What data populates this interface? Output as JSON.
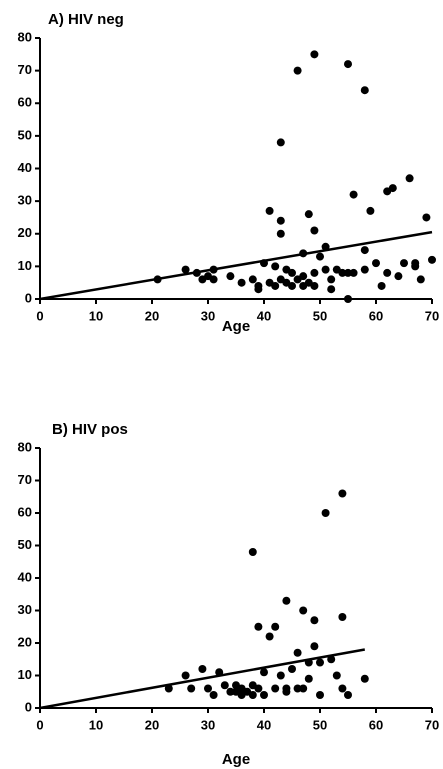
{
  "chart_data": [
    {
      "type": "scatter",
      "title": "A) HIV neg",
      "xlabel": "Age",
      "color": "#000000",
      "x": [
        21,
        26,
        28,
        29,
        30,
        31,
        31,
        34,
        36,
        38,
        39,
        39,
        40,
        41,
        41,
        42,
        42,
        43,
        43,
        43,
        43,
        44,
        44,
        45,
        45,
        46,
        46,
        47,
        47,
        47,
        48,
        48,
        49,
        49,
        49,
        49,
        50,
        51,
        51,
        52,
        52,
        53,
        54,
        55,
        55,
        55,
        56,
        56,
        58,
        58,
        58,
        59,
        60,
        61,
        62,
        62,
        63,
        64,
        65,
        66,
        67,
        67,
        68,
        69,
        70
      ],
      "values": [
        6,
        9,
        8,
        6,
        7,
        9,
        6,
        7,
        5,
        6,
        4,
        3,
        11,
        5,
        27,
        10,
        4,
        48,
        24,
        20,
        6,
        9,
        5,
        8,
        4,
        70,
        6,
        14,
        7,
        4,
        26,
        5,
        75,
        21,
        8,
        4,
        13,
        16,
        9,
        6,
        3,
        9,
        8,
        72,
        0,
        8,
        32,
        8,
        64,
        15,
        9,
        27,
        11,
        4,
        33,
        8,
        34,
        7,
        11,
        37,
        11,
        10,
        6,
        25,
        12
      ],
      "fit": {
        "x": [
          0,
          70
        ],
        "values": [
          0,
          20.5
        ]
      },
      "xlim": [
        0,
        70
      ],
      "ylim": [
        0,
        80
      ],
      "xticks": [
        0,
        10,
        20,
        30,
        40,
        50,
        60,
        70
      ],
      "yticks": [
        0,
        10,
        20,
        30,
        40,
        50,
        60,
        70,
        80
      ]
    },
    {
      "type": "scatter",
      "title": "B) HIV pos",
      "xlabel": "Age",
      "color": "#000000",
      "x": [
        23,
        26,
        27,
        29,
        30,
        31,
        32,
        33,
        34,
        35,
        35,
        36,
        36,
        37,
        38,
        38,
        38,
        39,
        39,
        40,
        40,
        41,
        42,
        42,
        43,
        44,
        44,
        44,
        45,
        46,
        46,
        47,
        47,
        48,
        48,
        49,
        49,
        50,
        50,
        51,
        52,
        53,
        54,
        54,
        54,
        55,
        58
      ],
      "values": [
        6,
        10,
        6,
        12,
        6,
        4,
        11,
        7,
        5,
        7,
        5,
        6,
        4,
        5,
        48,
        7,
        4,
        25,
        6,
        11,
        4,
        22,
        25,
        6,
        10,
        33,
        6,
        5,
        12,
        17,
        6,
        30,
        6,
        14,
        9,
        27,
        19,
        14,
        4,
        60,
        15,
        10,
        66,
        28,
        6,
        4,
        9
      ],
      "fit": {
        "x": [
          0,
          58
        ],
        "values": [
          0,
          18
        ]
      },
      "xlim": [
        0,
        70
      ],
      "ylim": [
        0,
        80
      ],
      "xticks": [
        0,
        10,
        20,
        30,
        40,
        50,
        60,
        70
      ],
      "yticks": [
        0,
        10,
        20,
        30,
        40,
        50,
        60,
        70,
        80
      ]
    }
  ]
}
